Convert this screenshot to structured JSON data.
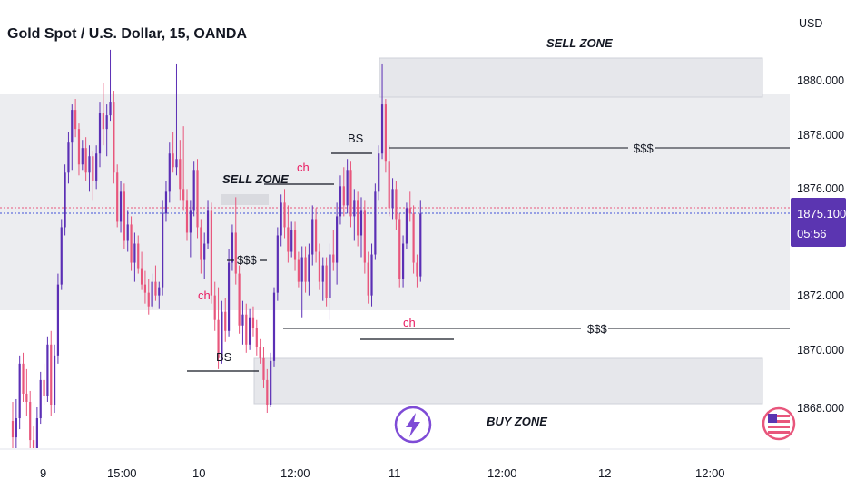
{
  "chart_data": {
    "type": "candlestick",
    "title": "Gold Spot / U.S. Dollar, 15, OANDA",
    "currency": "USD",
    "y_ticks": [
      "1880.000",
      "1878.000",
      "1876.000",
      "1872.000",
      "1870.000",
      "1868.000"
    ],
    "y_range": [
      1866.1,
      1881.8
    ],
    "x_ticks": [
      "9",
      "15:00",
      "10",
      "12:00",
      "11",
      "12:00",
      "12",
      "12:00"
    ],
    "last_price": "1875.100",
    "countdown": "05:56",
    "colors": {
      "up": "#5b2fb5",
      "down": "#e8567c",
      "zone": "#e6e7eb",
      "badge": "#5b35b1",
      "annotation": "#e91e63"
    },
    "candles": [
      [
        1867.5,
        1868.2,
        1866.3,
        1866.9
      ],
      [
        1866.9,
        1868.3,
        1866.1,
        1867.6
      ],
      [
        1867.6,
        1869.9,
        1867.2,
        1869.6
      ],
      [
        1869.6,
        1870.0,
        1868.2,
        1868.5
      ],
      [
        1868.5,
        1869.4,
        1867.7,
        1868.2
      ],
      [
        1868.2,
        1868.6,
        1866.4,
        1866.8
      ],
      [
        1866.8,
        1867.3,
        1866.1,
        1866.3
      ],
      [
        1866.3,
        1868.0,
        1866.1,
        1867.6
      ],
      [
        1867.6,
        1869.3,
        1867.4,
        1869.0
      ],
      [
        1869.0,
        1869.6,
        1868.1,
        1868.4
      ],
      [
        1868.4,
        1870.6,
        1868.2,
        1870.3
      ],
      [
        1870.3,
        1870.8,
        1867.7,
        1868.1
      ],
      [
        1868.1,
        1870.3,
        1867.8,
        1869.9
      ],
      [
        1869.9,
        1872.9,
        1869.6,
        1872.5
      ],
      [
        1872.5,
        1874.9,
        1872.3,
        1874.6
      ],
      [
        1874.6,
        1876.9,
        1874.3,
        1876.6
      ],
      [
        1876.6,
        1878.1,
        1876.2,
        1877.7
      ],
      [
        1877.7,
        1879.1,
        1876.7,
        1878.9
      ],
      [
        1878.9,
        1879.3,
        1877.9,
        1878.2
      ],
      [
        1878.2,
        1878.4,
        1876.5,
        1876.9
      ],
      [
        1876.9,
        1877.8,
        1876.7,
        1877.5
      ],
      [
        1877.5,
        1877.9,
        1876.3,
        1876.6
      ],
      [
        1876.6,
        1877.6,
        1875.9,
        1877.2
      ],
      [
        1877.2,
        1877.4,
        1875.6,
        1876.3
      ],
      [
        1876.3,
        1877.6,
        1876.0,
        1877.3
      ],
      [
        1877.3,
        1879.2,
        1876.8,
        1878.8
      ],
      [
        1878.8,
        1879.9,
        1877.6,
        1878.2
      ],
      [
        1878.2,
        1879.1,
        1877.2,
        1878.7
      ],
      [
        1878.7,
        1881.1,
        1878.5,
        1879.2
      ],
      [
        1879.2,
        1879.6,
        1876.2,
        1876.6
      ],
      [
        1876.6,
        1876.9,
        1874.6,
        1874.8
      ],
      [
        1874.8,
        1876.3,
        1874.4,
        1875.9
      ],
      [
        1875.9,
        1876.2,
        1873.8,
        1874.1
      ],
      [
        1874.1,
        1875.2,
        1873.7,
        1874.7
      ],
      [
        1874.7,
        1875.0,
        1873.0,
        1873.3
      ],
      [
        1873.3,
        1874.4,
        1872.6,
        1874.0
      ],
      [
        1874.0,
        1874.3,
        1872.9,
        1873.1
      ],
      [
        1873.1,
        1873.7,
        1872.3,
        1872.5
      ],
      [
        1872.5,
        1873.0,
        1871.8,
        1872.2
      ],
      [
        1872.2,
        1872.7,
        1871.4,
        1871.7
      ],
      [
        1871.7,
        1872.9,
        1871.6,
        1872.6
      ],
      [
        1872.6,
        1873.2,
        1871.9,
        1872.1
      ],
      [
        1872.1,
        1872.6,
        1871.6,
        1872.4
      ],
      [
        1872.4,
        1875.6,
        1872.1,
        1875.1
      ],
      [
        1875.1,
        1876.3,
        1874.8,
        1875.9
      ],
      [
        1875.9,
        1877.7,
        1875.5,
        1877.3
      ],
      [
        1877.3,
        1878.1,
        1876.6,
        1876.8
      ],
      [
        1876.8,
        1880.6,
        1876.5,
        1877.1
      ],
      [
        1877.1,
        1877.8,
        1875.6,
        1876.0
      ],
      [
        1876.0,
        1878.3,
        1875.2,
        1875.6
      ],
      [
        1875.6,
        1876.0,
        1874.1,
        1874.4
      ],
      [
        1874.4,
        1875.6,
        1873.5,
        1875.2
      ],
      [
        1875.2,
        1877.0,
        1875.0,
        1876.7
      ],
      [
        1876.7,
        1877.1,
        1874.2,
        1874.6
      ],
      [
        1874.6,
        1874.9,
        1872.9,
        1873.4
      ],
      [
        1873.4,
        1874.4,
        1872.7,
        1874.0
      ],
      [
        1874.0,
        1875.6,
        1873.8,
        1875.2
      ],
      [
        1875.2,
        1875.5,
        1871.8,
        1872.1
      ],
      [
        1872.1,
        1872.6,
        1870.8,
        1871.2
      ],
      [
        1871.2,
        1872.4,
        1869.4,
        1869.8
      ],
      [
        1869.8,
        1871.9,
        1869.6,
        1871.5
      ],
      [
        1871.5,
        1872.0,
        1870.4,
        1870.8
      ],
      [
        1870.8,
        1873.8,
        1870.6,
        1873.3
      ],
      [
        1873.3,
        1874.7,
        1873.0,
        1874.4
      ],
      [
        1874.4,
        1875.7,
        1872.5,
        1872.9
      ],
      [
        1872.9,
        1873.2,
        1870.7,
        1871.0
      ],
      [
        1871.0,
        1871.9,
        1870.3,
        1871.4
      ],
      [
        1871.4,
        1871.8,
        1870.0,
        1870.3
      ],
      [
        1870.3,
        1871.6,
        1870.1,
        1871.3
      ],
      [
        1871.3,
        1871.7,
        1870.6,
        1870.9
      ],
      [
        1870.9,
        1871.2,
        1869.9,
        1870.2
      ],
      [
        1870.2,
        1870.5,
        1869.6,
        1869.8
      ],
      [
        1869.8,
        1870.2,
        1868.7,
        1869.0
      ],
      [
        1869.0,
        1869.4,
        1867.8,
        1868.1
      ],
      [
        1868.1,
        1870.0,
        1868.0,
        1869.7
      ],
      [
        1869.7,
        1872.4,
        1869.5,
        1872.2
      ],
      [
        1872.2,
        1874.6,
        1871.9,
        1874.3
      ],
      [
        1874.3,
        1875.8,
        1873.9,
        1875.5
      ],
      [
        1875.5,
        1876.0,
        1874.2,
        1874.6
      ],
      [
        1874.6,
        1875.4,
        1873.3,
        1873.7
      ],
      [
        1873.7,
        1874.8,
        1873.5,
        1874.5
      ],
      [
        1874.5,
        1874.8,
        1873.0,
        1873.4
      ],
      [
        1873.4,
        1873.7,
        1872.4,
        1872.6
      ],
      [
        1872.6,
        1873.9,
        1871.3,
        1873.5
      ],
      [
        1873.5,
        1873.9,
        1872.2,
        1872.6
      ],
      [
        1872.6,
        1874.0,
        1872.1,
        1873.6
      ],
      [
        1873.6,
        1875.4,
        1873.2,
        1874.9
      ],
      [
        1874.9,
        1875.3,
        1873.3,
        1873.7
      ],
      [
        1873.7,
        1874.0,
        1872.3,
        1872.6
      ],
      [
        1872.6,
        1873.5,
        1871.9,
        1873.2
      ],
      [
        1873.2,
        1873.5,
        1871.7,
        1872.0
      ],
      [
        1872.0,
        1874.0,
        1871.2,
        1873.6
      ],
      [
        1873.6,
        1874.5,
        1873.0,
        1873.3
      ],
      [
        1873.3,
        1875.5,
        1872.5,
        1875.0
      ],
      [
        1875.0,
        1876.5,
        1874.7,
        1876.1
      ],
      [
        1876.1,
        1876.8,
        1875.0,
        1875.4
      ],
      [
        1875.4,
        1877.1,
        1875.1,
        1876.7
      ],
      [
        1876.7,
        1877.0,
        1874.6,
        1875.0
      ],
      [
        1875.0,
        1876.0,
        1874.1,
        1875.6
      ],
      [
        1875.6,
        1875.9,
        1873.9,
        1874.3
      ],
      [
        1874.3,
        1875.7,
        1873.5,
        1875.2
      ],
      [
        1875.2,
        1875.6,
        1872.9,
        1873.3
      ],
      [
        1873.3,
        1873.7,
        1871.8,
        1872.1
      ],
      [
        1872.1,
        1874.0,
        1871.7,
        1873.6
      ],
      [
        1873.6,
        1876.2,
        1873.4,
        1875.9
      ],
      [
        1875.9,
        1877.6,
        1875.6,
        1877.3
      ],
      [
        1877.3,
        1880.6,
        1877.1,
        1879.1
      ],
      [
        1879.1,
        1879.3,
        1876.6,
        1877.0
      ],
      [
        1877.0,
        1877.6,
        1875.0,
        1875.3
      ],
      [
        1875.3,
        1876.4,
        1874.9,
        1876.0
      ],
      [
        1876.0,
        1876.3,
        1874.5,
        1874.9
      ],
      [
        1874.9,
        1875.1,
        1872.4,
        1872.7
      ],
      [
        1872.7,
        1874.3,
        1872.4,
        1874.0
      ],
      [
        1874.0,
        1875.5,
        1873.8,
        1875.3
      ],
      [
        1875.3,
        1875.9,
        1874.8,
        1875.1
      ],
      [
        1875.1,
        1875.4,
        1872.9,
        1873.3
      ],
      [
        1873.3,
        1873.6,
        1872.4,
        1872.8
      ],
      [
        1872.8,
        1875.6,
        1872.6,
        1875.1
      ]
    ],
    "zones": [
      {
        "label": "SELL ZONE",
        "from": 1881.2,
        "to": 1879.3
      },
      {
        "label": "SELL ZONE",
        "from": 1876.1,
        "to": 1875.5
      },
      {
        "label": "BUY ZONE",
        "from": 1869.8,
        "to": 1868.1
      }
    ],
    "annotations": [
      "BS",
      "BS",
      "ch",
      "ch",
      "ch",
      "$$$",
      "$$$",
      "$$$"
    ]
  }
}
